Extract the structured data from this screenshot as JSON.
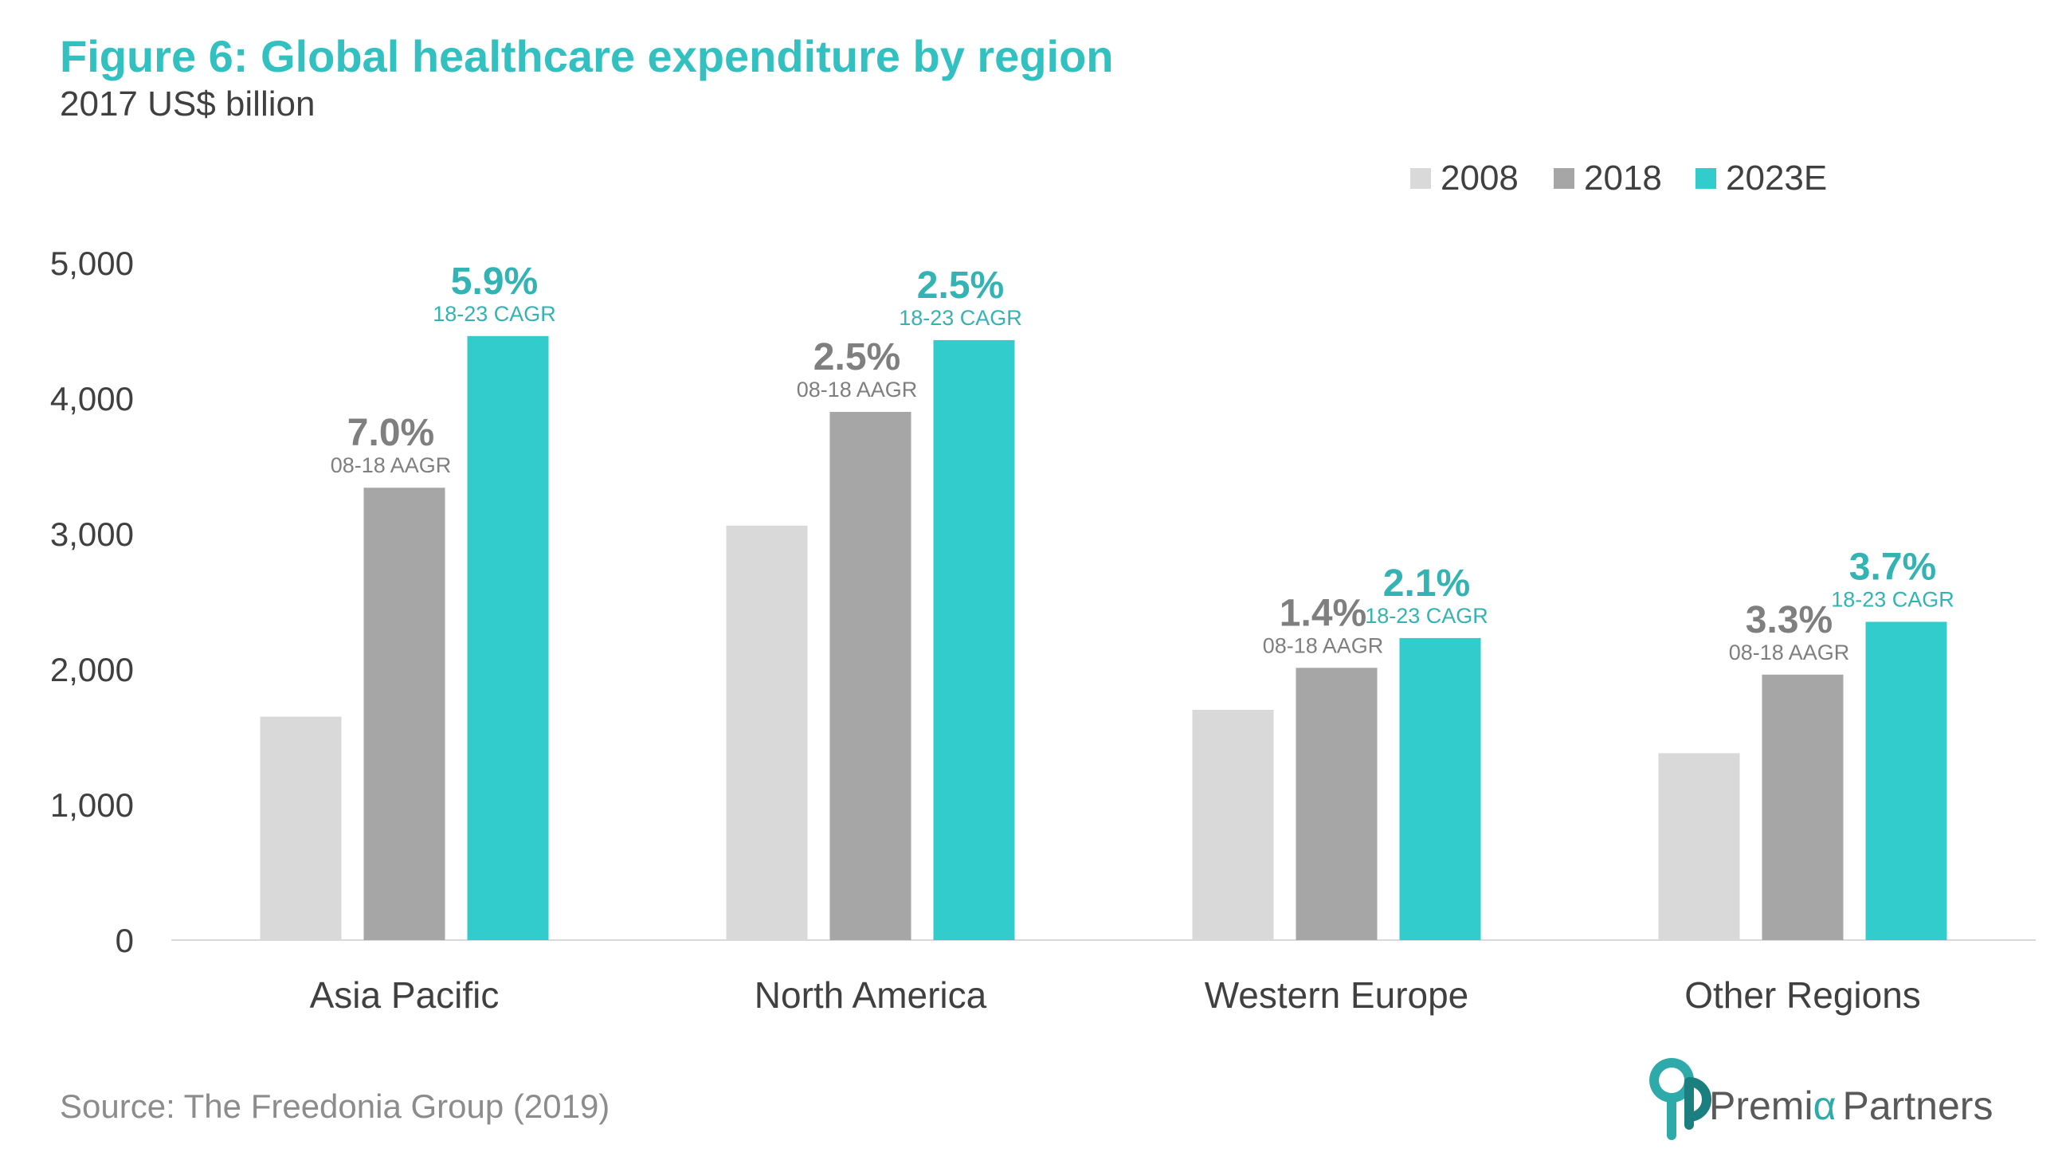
{
  "chart_data": {
    "type": "bar",
    "title": "Figure 6: Global healthcare expenditure by region",
    "subtitle": "2017 US$ billion",
    "categories": [
      "Asia Pacific",
      "North America",
      "Western Europe",
      "Other Regions"
    ],
    "series": [
      {
        "name": "2008",
        "color": "#d9d9d9",
        "values": [
          1650,
          3060,
          1700,
          1380
        ]
      },
      {
        "name": "2018",
        "color": "#a6a6a6",
        "values": [
          3340,
          3900,
          2010,
          1960
        ]
      },
      {
        "name": "2023E",
        "color": "#33cccc",
        "values": [
          4460,
          4430,
          2230,
          2350
        ]
      }
    ],
    "ylim": [
      0,
      5000
    ],
    "yticks": [
      "0",
      "1,000",
      "2,000",
      "3,000",
      "4,000",
      "5,000"
    ],
    "xlabel": "",
    "ylabel": "",
    "grid": false,
    "legend_position": "top-right",
    "annotations": {
      "aagr": {
        "series": "2018",
        "color": "#7f7f7f",
        "label": "08-18 AAGR",
        "values": [
          "7.0%",
          "2.5%",
          "1.4%",
          "3.3%"
        ]
      },
      "cagr": {
        "series": "2023E",
        "color": "#33b3b3",
        "label": "18-23 CAGR",
        "values": [
          "5.9%",
          "2.5%",
          "2.1%",
          "3.7%"
        ]
      }
    }
  },
  "footer": {
    "source": "Source: The Freedonia Group (2019)",
    "logo_text_a": "Premi",
    "logo_text_alpha": "α",
    "logo_text_b": "Partners"
  }
}
